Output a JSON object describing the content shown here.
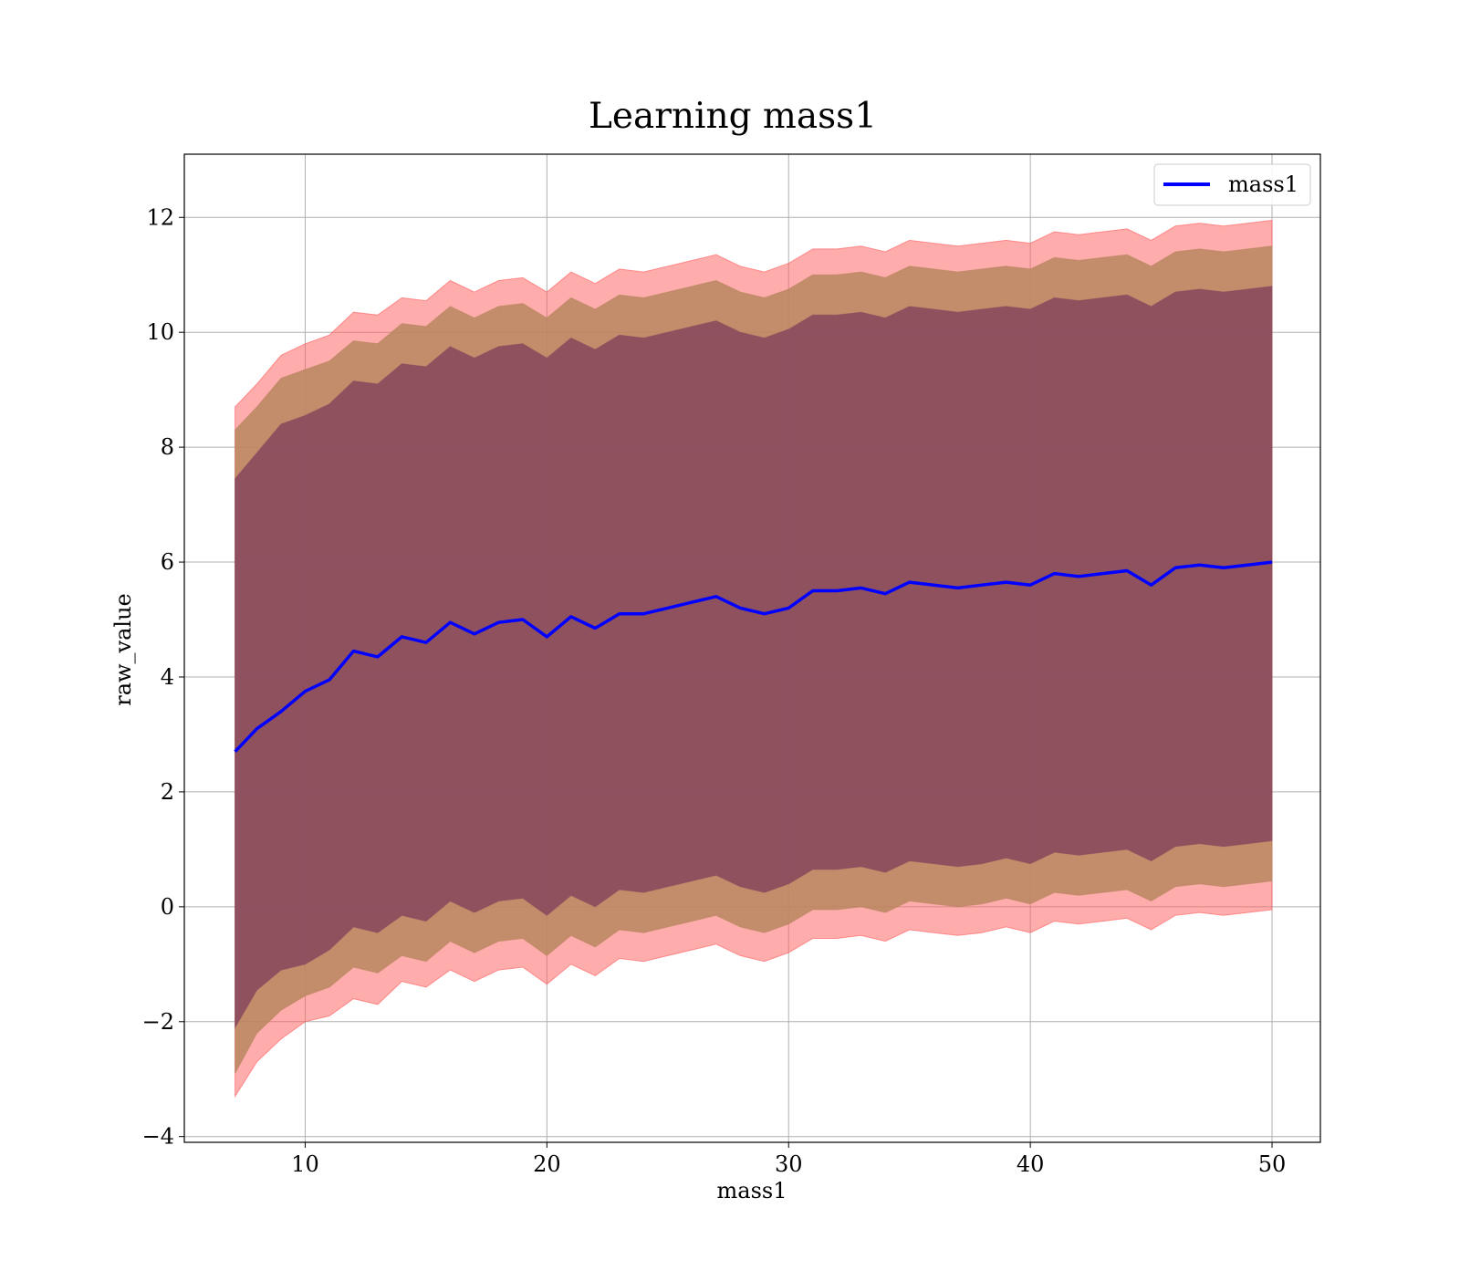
{
  "chart_data": {
    "type": "area",
    "title": "Learning mass1",
    "xlabel": "mass1",
    "ylabel": "raw_value",
    "xlim": [
      5,
      52
    ],
    "ylim": [
      -4.1,
      13.1
    ],
    "xticks": [
      10,
      20,
      30,
      40,
      50
    ],
    "yticks": [
      -4,
      -2,
      0,
      2,
      4,
      6,
      8,
      10,
      12
    ],
    "xtick_labels": [
      "10",
      "20",
      "30",
      "40",
      "50"
    ],
    "ytick_labels": [
      "−4",
      "−2",
      "0",
      "2",
      "4",
      "6",
      "8",
      "10",
      "12"
    ],
    "grid": true,
    "legend_position": "upper right",
    "colors": {
      "line": "#0000ff",
      "band_outer": "#ff5a5a",
      "band_middle": "#b8865f",
      "band_inner": "#8b4a5e",
      "grid": "#b0b0b0"
    },
    "series": [
      {
        "name": "mass1",
        "x": [
          7.1,
          8,
          9,
          10,
          11,
          12,
          13,
          14,
          15,
          16,
          17,
          18,
          19,
          20,
          21,
          22,
          23,
          24,
          25,
          26,
          27,
          28,
          29,
          30,
          31,
          32,
          33,
          34,
          35,
          36,
          37,
          38,
          39,
          40,
          41,
          42,
          43,
          44,
          45,
          46,
          47,
          48,
          49,
          50
        ],
        "y": [
          2.7,
          3.1,
          3.4,
          3.75,
          3.95,
          4.45,
          4.35,
          4.7,
          4.6,
          4.95,
          4.75,
          4.95,
          5.0,
          4.7,
          5.05,
          4.85,
          5.1,
          5.1,
          5.2,
          5.3,
          5.4,
          5.2,
          5.1,
          5.2,
          5.5,
          5.5,
          5.55,
          5.45,
          5.65,
          5.6,
          5.55,
          5.6,
          5.65,
          5.6,
          5.8,
          5.75,
          5.8,
          5.85,
          5.6,
          5.9,
          5.95,
          5.9,
          5.95,
          6.0
        ]
      }
    ],
    "bands": [
      {
        "level": "outer",
        "lower": [
          -3.3,
          -2.7,
          -2.3,
          -2.0,
          -1.9,
          -1.6,
          -1.7,
          -1.3,
          -1.4,
          -1.1,
          -1.3,
          -1.1,
          -1.05,
          -1.35,
          -1.0,
          -1.2,
          -0.9,
          -0.95,
          -0.85,
          -0.75,
          -0.65,
          -0.85,
          -0.95,
          -0.8,
          -0.55,
          -0.55,
          -0.5,
          -0.6,
          -0.4,
          -0.45,
          -0.5,
          -0.45,
          -0.35,
          -0.45,
          -0.25,
          -0.3,
          -0.25,
          -0.2,
          -0.4,
          -0.15,
          -0.1,
          -0.15,
          -0.1,
          -0.05
        ],
        "upper": [
          8.7,
          9.1,
          9.6,
          9.8,
          9.95,
          10.35,
          10.3,
          10.6,
          10.55,
          10.9,
          10.7,
          10.9,
          10.95,
          10.7,
          11.05,
          10.85,
          11.1,
          11.05,
          11.15,
          11.25,
          11.35,
          11.15,
          11.05,
          11.2,
          11.45,
          11.45,
          11.5,
          11.4,
          11.6,
          11.55,
          11.5,
          11.55,
          11.6,
          11.55,
          11.75,
          11.7,
          11.75,
          11.8,
          11.6,
          11.85,
          11.9,
          11.85,
          11.9,
          11.95
        ]
      },
      {
        "level": "middle",
        "lower": [
          -2.9,
          -2.2,
          -1.8,
          -1.55,
          -1.4,
          -1.05,
          -1.15,
          -0.85,
          -0.95,
          -0.6,
          -0.8,
          -0.6,
          -0.55,
          -0.85,
          -0.5,
          -0.7,
          -0.4,
          -0.45,
          -0.35,
          -0.25,
          -0.15,
          -0.35,
          -0.45,
          -0.3,
          -0.05,
          -0.05,
          0.0,
          -0.1,
          0.1,
          0.05,
          0.0,
          0.05,
          0.15,
          0.05,
          0.25,
          0.2,
          0.25,
          0.3,
          0.1,
          0.35,
          0.4,
          0.35,
          0.4,
          0.45
        ],
        "upper": [
          8.3,
          8.7,
          9.2,
          9.35,
          9.5,
          9.85,
          9.8,
          10.15,
          10.1,
          10.45,
          10.25,
          10.45,
          10.5,
          10.25,
          10.6,
          10.4,
          10.65,
          10.6,
          10.7,
          10.8,
          10.9,
          10.7,
          10.6,
          10.75,
          11.0,
          11.0,
          11.05,
          10.95,
          11.15,
          11.1,
          11.05,
          11.1,
          11.15,
          11.1,
          11.3,
          11.25,
          11.3,
          11.35,
          11.15,
          11.4,
          11.45,
          11.4,
          11.45,
          11.5
        ]
      },
      {
        "level": "inner",
        "lower": [
          -2.1,
          -1.45,
          -1.1,
          -1.0,
          -0.75,
          -0.35,
          -0.45,
          -0.15,
          -0.25,
          0.1,
          -0.1,
          0.1,
          0.15,
          -0.15,
          0.2,
          0.0,
          0.3,
          0.25,
          0.35,
          0.45,
          0.55,
          0.35,
          0.25,
          0.4,
          0.65,
          0.65,
          0.7,
          0.6,
          0.8,
          0.75,
          0.7,
          0.75,
          0.85,
          0.75,
          0.95,
          0.9,
          0.95,
          1.0,
          0.8,
          1.05,
          1.1,
          1.05,
          1.1,
          1.15
        ],
        "upper": [
          7.45,
          7.9,
          8.4,
          8.55,
          8.75,
          9.15,
          9.1,
          9.45,
          9.4,
          9.75,
          9.55,
          9.75,
          9.8,
          9.55,
          9.9,
          9.7,
          9.95,
          9.9,
          10.0,
          10.1,
          10.2,
          10.0,
          9.9,
          10.05,
          10.3,
          10.3,
          10.35,
          10.25,
          10.45,
          10.4,
          10.35,
          10.4,
          10.45,
          10.4,
          10.6,
          10.55,
          10.6,
          10.65,
          10.45,
          10.7,
          10.75,
          10.7,
          10.75,
          10.8
        ]
      }
    ]
  }
}
